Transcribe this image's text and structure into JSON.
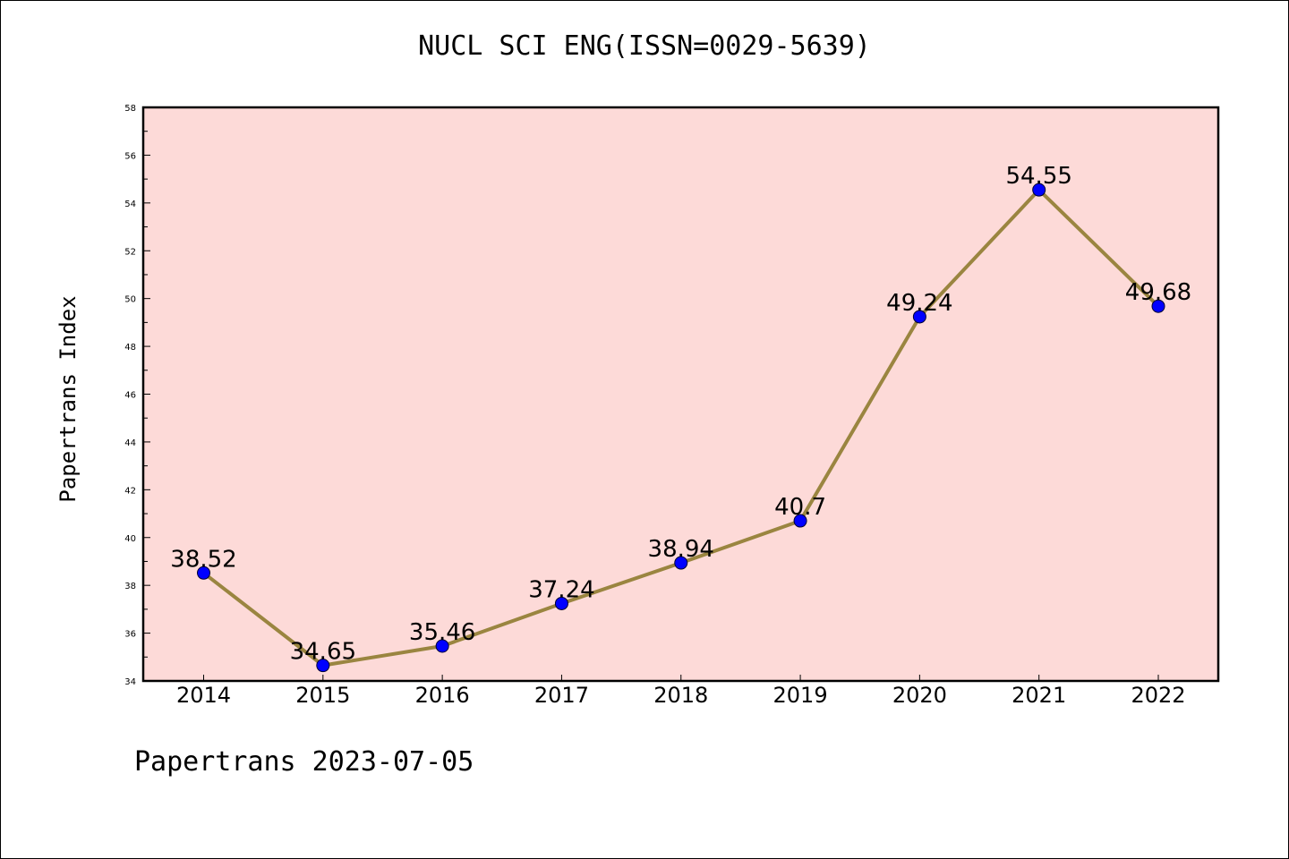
{
  "title": "NUCL SCI ENG(ISSN=0029-5639)",
  "footer": "Papertrans 2023-07-05",
  "colors": {
    "plot_background": "#fddad8",
    "line": "#9a8540",
    "marker": "#0000ff"
  },
  "chart_data": {
    "type": "line",
    "title": "NUCL SCI ENG(ISSN=0029-5639)",
    "xlabel": "",
    "ylabel": "Papertrans Index",
    "categories": [
      "2014",
      "2015",
      "2016",
      "2017",
      "2018",
      "2019",
      "2020",
      "2021",
      "2022"
    ],
    "series": [
      {
        "values": [
          38.52,
          34.65,
          35.46,
          37.24,
          38.94,
          40.7,
          49.24,
          54.55,
          49.68
        ],
        "labels": [
          "38.52",
          "34.65",
          "35.46",
          "37.24",
          "38.94",
          "40.7",
          "49.24",
          "54.55",
          "49.68"
        ]
      }
    ],
    "ylim": [
      34,
      58
    ],
    "yticks": [
      "34",
      "36",
      "38",
      "40",
      "42",
      "44",
      "46",
      "48",
      "50",
      "52",
      "54",
      "56",
      "58"
    ],
    "grid": false,
    "legend": "none"
  }
}
